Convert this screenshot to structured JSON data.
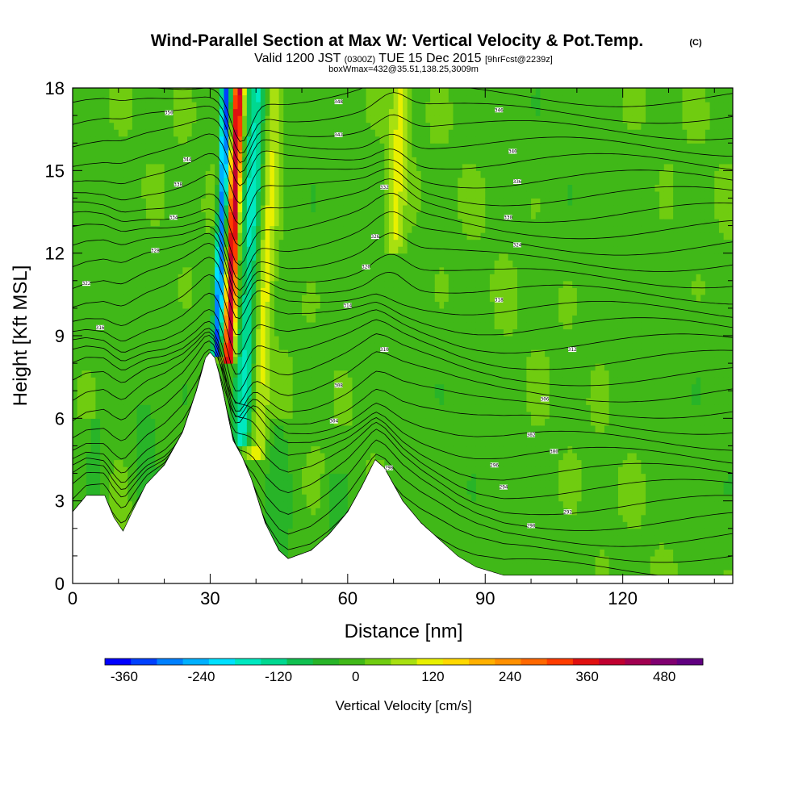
{
  "chart_data": {
    "type": "heatmap",
    "title": "Wind-Parallel Section at Max W: Vertical Velocity & Pot.Temp.",
    "title_mark": "(C)",
    "subtitle": {
      "valid": "Valid 1200 JST",
      "utc": "(0300Z)",
      "date": "TUE 15 Dec 2015",
      "forecast": "[9hrFcst@2239z]"
    },
    "subtitle2": "boxWmax=432@35.51,138.25,3009m",
    "xlabel": "Distance [nm]",
    "ylabel": "Height [Kft MSL]",
    "xlim": [
      0,
      144
    ],
    "ylim": [
      0,
      18
    ],
    "x_ticks": [
      "0",
      "30",
      "60",
      "90",
      "120"
    ],
    "y_ticks": [
      "0",
      "3",
      "6",
      "9",
      "12",
      "15",
      "18"
    ],
    "colorbar": {
      "label": "Vertical Velocity [cm/s]",
      "tick_labels": [
        "-360",
        "-240",
        "-120",
        "0",
        "120",
        "240",
        "360",
        "480"
      ],
      "tick_values": [
        -360,
        -240,
        -120,
        0,
        120,
        240,
        360,
        480
      ],
      "range": [
        -390,
        540
      ],
      "colors": [
        "#0000ff",
        "#0040ff",
        "#0080ff",
        "#00b0ff",
        "#00e0ff",
        "#00e8c0",
        "#00d890",
        "#10c050",
        "#28b428",
        "#40b818",
        "#70cc10",
        "#a8e010",
        "#e8f000",
        "#ffd800",
        "#ffb000",
        "#ff9000",
        "#ff6800",
        "#ff3c00",
        "#e01010",
        "#c00030",
        "#a00050",
        "#800070",
        "#600080"
      ]
    },
    "terrain_profile": [
      [
        0,
        2.6
      ],
      [
        3,
        3.2
      ],
      [
        7,
        3.2
      ],
      [
        9,
        2.4
      ],
      [
        11,
        1.9
      ],
      [
        13,
        2.6
      ],
      [
        16,
        3.6
      ],
      [
        20,
        4.3
      ],
      [
        24,
        5.5
      ],
      [
        27,
        7.0
      ],
      [
        29,
        8.2
      ],
      [
        30,
        8.4
      ],
      [
        31,
        8.2
      ],
      [
        32,
        7.6
      ],
      [
        33,
        6.8
      ],
      [
        34,
        6.0
      ],
      [
        35,
        5.2
      ],
      [
        37,
        4.6
      ],
      [
        39,
        3.8
      ],
      [
        42,
        2.2
      ],
      [
        45,
        1.2
      ],
      [
        47,
        0.9
      ],
      [
        52,
        1.2
      ],
      [
        56,
        1.8
      ],
      [
        60,
        2.6
      ],
      [
        63,
        3.5
      ],
      [
        66,
        4.5
      ],
      [
        68,
        4.2
      ],
      [
        70,
        3.6
      ],
      [
        72,
        3.0
      ],
      [
        76,
        2.2
      ],
      [
        80,
        1.6
      ],
      [
        84,
        1.0
      ],
      [
        88,
        0.6
      ],
      [
        90,
        0.5
      ],
      [
        94,
        0.3
      ],
      [
        144,
        0.3
      ]
    ],
    "w_features": [
      {
        "x": 34,
        "z_min": 8.0,
        "z_max": 18,
        "w": 420,
        "width": 1.2,
        "slope": 0.22
      },
      {
        "x": 31.5,
        "z_min": 8.3,
        "z_max": 18,
        "w": -320,
        "width": 1.0,
        "slope": 0.22
      },
      {
        "x": 37,
        "z_min": 5.0,
        "z_max": 18,
        "w": -160,
        "width": 2.2,
        "slope": 0.25
      },
      {
        "x": 40,
        "z_min": 4.5,
        "z_max": 18,
        "w": 110,
        "width": 2.0,
        "slope": 0.3
      },
      {
        "x": 70,
        "z_min": 12.0,
        "z_max": 18,
        "w": 100,
        "width": 2.0,
        "slope": 0.25
      },
      {
        "x": 45,
        "z_min": 1.0,
        "z_max": 6.0,
        "w": -40,
        "width": 3.0,
        "slope": 0.0
      },
      {
        "x": 58,
        "z_min": 1.0,
        "z_max": 4.0,
        "w": -40,
        "width": 3.0,
        "slope": 0.0
      },
      {
        "x": 5,
        "z_min": 3.0,
        "z_max": 6.0,
        "w": -50,
        "width": 2.0,
        "slope": 0.0
      },
      {
        "x": 16,
        "z_min": 3.0,
        "z_max": 6.5,
        "w": -50,
        "width": 2.0,
        "slope": 0.0
      }
    ],
    "contour_levels_count": 30,
    "contour_labels": [
      {
        "x": 21,
        "z": 17.1,
        "text": "350"
      },
      {
        "x": 58,
        "z": 17.5,
        "text": "348"
      },
      {
        "x": 93,
        "z": 17.2,
        "text": "346"
      },
      {
        "x": 25,
        "z": 15.4,
        "text": "344"
      },
      {
        "x": 58,
        "z": 16.3,
        "text": "342"
      },
      {
        "x": 96,
        "z": 15.7,
        "text": "340"
      },
      {
        "x": 23,
        "z": 14.5,
        "text": "338"
      },
      {
        "x": 97,
        "z": 14.6,
        "text": "336"
      },
      {
        "x": 22,
        "z": 13.3,
        "text": "334"
      },
      {
        "x": 68,
        "z": 14.4,
        "text": "332"
      },
      {
        "x": 95,
        "z": 13.3,
        "text": "330"
      },
      {
        "x": 18,
        "z": 12.1,
        "text": "328"
      },
      {
        "x": 66,
        "z": 12.6,
        "text": "326"
      },
      {
        "x": 97,
        "z": 12.3,
        "text": "324"
      },
      {
        "x": 3,
        "z": 10.9,
        "text": "322"
      },
      {
        "x": 64,
        "z": 11.5,
        "text": "320"
      },
      {
        "x": 93,
        "z": 10.3,
        "text": "318"
      },
      {
        "x": 6,
        "z": 9.3,
        "text": "316"
      },
      {
        "x": 60,
        "z": 10.1,
        "text": "314"
      },
      {
        "x": 109,
        "z": 8.5,
        "text": "312"
      },
      {
        "x": 68,
        "z": 8.5,
        "text": "310"
      },
      {
        "x": 58,
        "z": 7.2,
        "text": "308"
      },
      {
        "x": 103,
        "z": 6.7,
        "text": "306"
      },
      {
        "x": 57,
        "z": 5.9,
        "text": "304"
      },
      {
        "x": 100,
        "z": 5.4,
        "text": "302"
      },
      {
        "x": 105,
        "z": 4.8,
        "text": "300"
      },
      {
        "x": 69,
        "z": 4.2,
        "text": "298"
      },
      {
        "x": 92,
        "z": 4.3,
        "text": "296"
      },
      {
        "x": 94,
        "z": 3.5,
        "text": "294"
      },
      {
        "x": 108,
        "z": 2.6,
        "text": "292"
      },
      {
        "x": 100,
        "z": 2.1,
        "text": "290"
      }
    ]
  }
}
